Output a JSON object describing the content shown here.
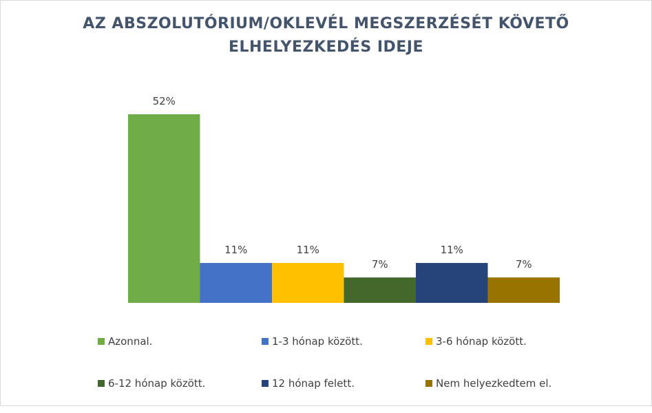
{
  "chart_data": {
    "type": "bar",
    "title_lines": [
      "AZ ABSZOLUTÓRIUM/OKLEVÉL MEGSZERZÉSÉT KÖVETŐ",
      "ELHELYEZKEDÉS IDEJE"
    ],
    "xlabel": "",
    "ylabel": "",
    "ylim": [
      0,
      52
    ],
    "grid": false,
    "legend_position": "bottom",
    "series": [
      {
        "name": "Azonnal.",
        "value": 52,
        "label": "52%",
        "color": "#70ad47"
      },
      {
        "name": "1-3 hónap között.",
        "value": 11,
        "label": "11%",
        "color": "#4472c4"
      },
      {
        "name": "3-6 hónap között.",
        "value": 11,
        "label": "11%",
        "color": "#ffc000"
      },
      {
        "name": "6-12 hónap között.",
        "value": 7,
        "label": "7%",
        "color": "#43682b"
      },
      {
        "name": "12 hónap felett.",
        "value": 11,
        "label": "11%",
        "color": "#264478"
      },
      {
        "name": "Nem helyezkedtem el.",
        "value": 7,
        "label": "7%",
        "color": "#997300"
      }
    ]
  }
}
